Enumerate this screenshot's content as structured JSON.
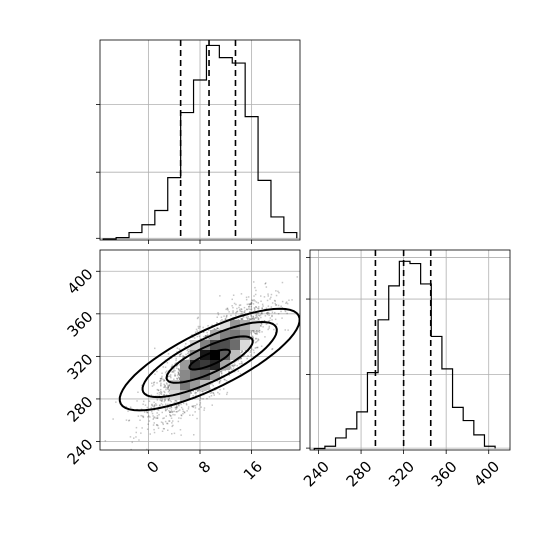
{
  "chart_data": [
    {
      "type": "histogram",
      "panel": "marginal-x",
      "bins": [
        -7,
        -5,
        -3,
        -1,
        1,
        3,
        5,
        7,
        9,
        11,
        13,
        15,
        17,
        19,
        21,
        23
      ],
      "counts": [
        0.3,
        0.7,
        2.2,
        4.5,
        8.7,
        18.4,
        37.6,
        47.2,
        57.4,
        53.8,
        52.2,
        36.4,
        17.6,
        6.8,
        2.2,
        0.5
      ],
      "quantiles": [
        5,
        9.4,
        13.5
      ],
      "xlim": [
        -7.5,
        23.5
      ],
      "ylim": [
        0,
        59
      ],
      "xticks": [
        0,
        8,
        16
      ],
      "grid": true
    },
    {
      "type": "scatter",
      "panel": "joint",
      "x_mean": 9.5,
      "y_mean": 317,
      "x_sd": 4.3,
      "y_sd": 25.5,
      "correlation": 0.82,
      "n_points": 3000,
      "contour_levels": [
        {
          "dx": 3.2,
          "dy": 9
        },
        {
          "dx": 6.8,
          "dy": 21
        },
        {
          "dx": 10.6,
          "dy": 34
        },
        {
          "dx": 14.2,
          "dy": 46
        }
      ],
      "xlim": [
        -7.5,
        23.5
      ],
      "ylim": [
        232,
        420
      ],
      "xticks": [
        0,
        8,
        16
      ],
      "yticks": [
        240,
        280,
        320,
        360,
        400
      ],
      "xtick_labels": [
        "0",
        "8",
        "16"
      ],
      "ytick_labels": [
        "240",
        "280",
        "320",
        "360",
        "400"
      ],
      "grid": true
    },
    {
      "type": "histogram",
      "panel": "marginal-y",
      "bins": [
        236,
        246,
        256,
        266,
        276,
        286,
        296,
        306,
        316,
        326,
        336,
        346,
        356,
        366,
        376,
        386,
        396,
        406
      ],
      "counts": [
        0.4,
        1.0,
        3.2,
        5.6,
        10.1,
        20.5,
        34.5,
        43.5,
        50.0,
        49.4,
        44.0,
        30.1,
        21.5,
        11.3,
        7.8,
        4.0,
        1.0,
        0.4
      ],
      "quantiles": [
        293.5,
        320,
        345.5
      ],
      "xlim": [
        232,
        420
      ],
      "ylim": [
        0,
        53
      ],
      "xticks": [
        240,
        280,
        320,
        360,
        400
      ],
      "xtick_labels": [
        "240",
        "280",
        "320",
        "360",
        "400"
      ],
      "grid": true
    }
  ]
}
